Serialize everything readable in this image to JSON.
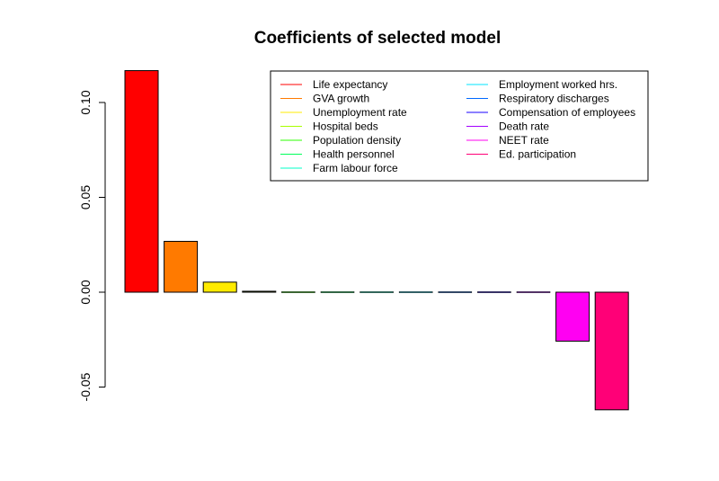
{
  "chart_data": {
    "type": "bar",
    "title": "Coefficients of selected model",
    "xlabel": "",
    "ylabel": "",
    "ylim": [
      -0.065,
      0.117
    ],
    "yticks": [
      -0.05,
      0.0,
      0.05,
      0.1
    ],
    "ytick_labels": [
      "-0.05",
      "0.00",
      "0.05",
      "0.10"
    ],
    "grid": false,
    "legend_position": "top-right",
    "categories": [
      "Life expectancy",
      "GVA growth",
      "Unemployment rate",
      "Hospital beds",
      "Population density",
      "Health personnel",
      "Farm labour force",
      "Employment worked hrs.",
      "Respiratory discharges",
      "Compensation of employees",
      "Death rate",
      "NEET rate",
      "Ed. participation"
    ],
    "values": [
      0.1168,
      0.0268,
      0.0053,
      0.0005,
      0.0001,
      0.0,
      0.0,
      0.0,
      0.0,
      0.0,
      -0.0004,
      -0.0258,
      -0.062
    ],
    "colors": [
      "#FF0000",
      "#FF7A00",
      "#FFEB00",
      "#A8FF00",
      "#2EFF00",
      "#00FF5A",
      "#00FFC8",
      "#00E5FF",
      "#0069FF",
      "#1A00FF",
      "#A300FF",
      "#FF00F2",
      "#FF0077"
    ]
  }
}
